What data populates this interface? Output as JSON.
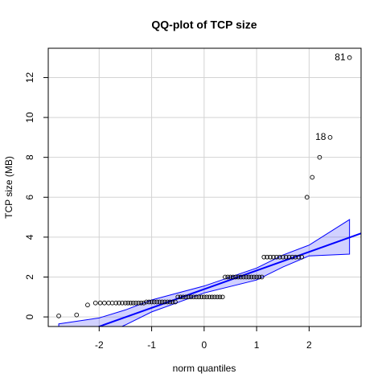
{
  "chart_data": {
    "type": "qqplot",
    "title": "QQ-plot of TCP size",
    "x_label": "norm quantiles",
    "y_label": "TCP size (MB)",
    "xlim": [
      -2.97,
      2.99
    ],
    "ylim": [
      -0.48,
      13.47
    ],
    "xticks": [
      -2,
      -1,
      0,
      1,
      2
    ],
    "yticks": [
      0,
      2,
      4,
      6,
      8,
      10,
      12
    ],
    "grid": true,
    "points": {
      "color": "#000000",
      "x": [
        -2.77,
        -2.43,
        -2.22,
        -2.07,
        -1.98,
        -1.9,
        -1.82,
        -1.75,
        -1.68,
        -1.62,
        -1.56,
        -1.5,
        -1.45,
        -1.4,
        -1.35,
        -1.3,
        -1.25,
        -1.2,
        -1.15,
        -1.1,
        -1.05,
        -1.0,
        -0.95,
        -0.9,
        -0.85,
        -0.8,
        -0.75,
        -0.7,
        -0.65,
        -0.6,
        -0.55,
        -0.5,
        -0.45,
        -0.4,
        -0.35,
        -0.3,
        -0.25,
        -0.2,
        -0.15,
        -0.1,
        -0.05,
        0,
        0.05,
        0.1,
        0.15,
        0.2,
        0.25,
        0.3,
        0.35,
        0.4,
        0.45,
        0.5,
        0.55,
        0.6,
        0.65,
        0.7,
        0.75,
        0.8,
        0.85,
        0.9,
        0.95,
        1.0,
        1.05,
        1.1,
        1.14,
        1.2,
        1.26,
        1.32,
        1.38,
        1.44,
        1.5,
        1.56,
        1.62,
        1.68,
        1.74,
        1.8,
        1.86,
        1.96,
        2.06,
        2.2,
        2.4,
        2.77
      ],
      "y": [
        0.05,
        0.1,
        0.6,
        0.7,
        0.7,
        0.7,
        0.7,
        0.7,
        0.7,
        0.7,
        0.7,
        0.7,
        0.7,
        0.7,
        0.7,
        0.7,
        0.7,
        0.7,
        0.7,
        0.75,
        0.75,
        0.75,
        0.75,
        0.75,
        0.75,
        0.75,
        0.75,
        0.75,
        0.75,
        0.75,
        0.75,
        1,
        1,
        1,
        1,
        1,
        1,
        1,
        1,
        1,
        1,
        1,
        1,
        1,
        1,
        1,
        1,
        1,
        1,
        2,
        2,
        2,
        2,
        2,
        2,
        2,
        2,
        2,
        2,
        2,
        2,
        2,
        2,
        2,
        3,
        3,
        3,
        3,
        3,
        3,
        3,
        3,
        3,
        3,
        3,
        3,
        3,
        6,
        7,
        8,
        9,
        13
      ]
    },
    "reference_line": {
      "intercept": 1.39,
      "slope": 0.936,
      "color": "#0000ff"
    },
    "envelope": {
      "color": "#0000ff",
      "x": [
        -2.77,
        -2.0,
        -1.5,
        -1.0,
        0,
        1.0,
        1.5,
        2.0,
        2.77
      ],
      "lower": [
        -2.2,
        -1.0,
        -0.4,
        0.25,
        1.2,
        1.85,
        2.5,
        3.06,
        3.15
      ],
      "upper": [
        -0.35,
        -0.05,
        0.35,
        0.85,
        1.55,
        2.45,
        3.1,
        3.6,
        4.88
      ]
    },
    "annotations": [
      {
        "text": "18",
        "x": 2.4,
        "y": 9
      },
      {
        "text": "81",
        "x": 2.77,
        "y": 13
      }
    ]
  }
}
